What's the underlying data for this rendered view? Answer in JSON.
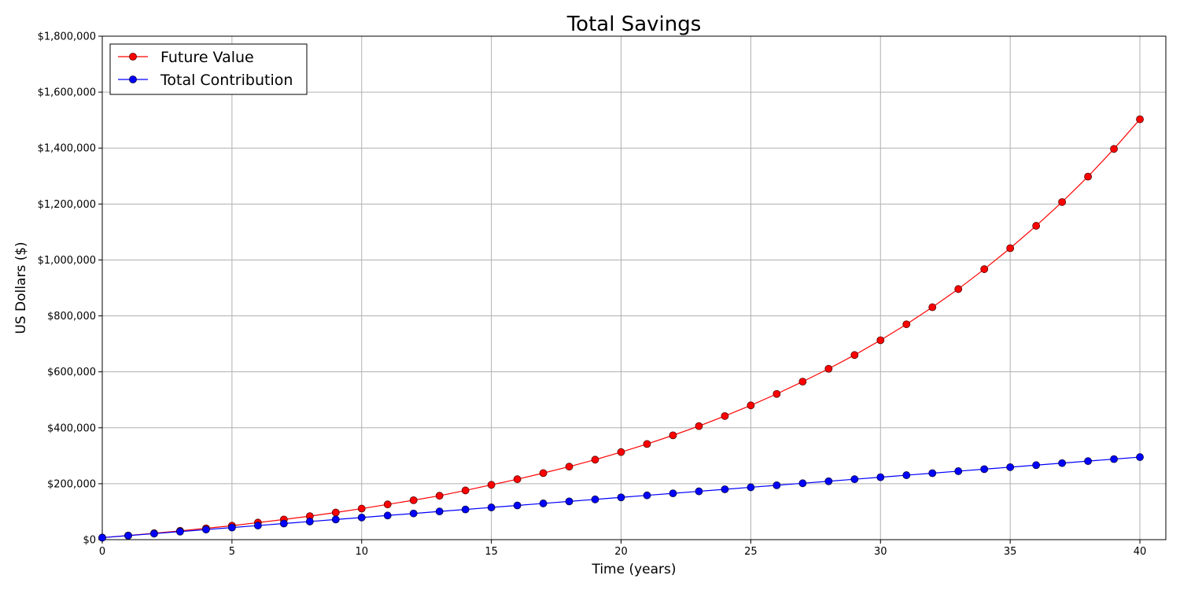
{
  "chart_data": {
    "type": "line",
    "title": "Total Savings",
    "xlabel": "Time (years)",
    "ylabel": "US Dollars ($)",
    "xlim": [
      0,
      41
    ],
    "ylim": [
      0,
      1800000
    ],
    "x_ticks": [
      0,
      5,
      10,
      15,
      20,
      25,
      30,
      35,
      40
    ],
    "y_ticks": [
      0,
      200000,
      400000,
      600000,
      800000,
      1000000,
      1200000,
      1400000,
      1600000,
      1800000
    ],
    "y_tick_labels": [
      "$0",
      "$200,000",
      "$400,000",
      "$600,000",
      "$800,000",
      "$1,000,000",
      "$1,200,000",
      "$1,400,000",
      "$1,600,000",
      "$1,800,000"
    ],
    "grid": true,
    "legend_position": "top-left",
    "x": [
      0,
      1,
      2,
      3,
      4,
      5,
      6,
      7,
      8,
      9,
      10,
      11,
      12,
      13,
      14,
      15,
      16,
      17,
      18,
      19,
      20,
      21,
      22,
      23,
      24,
      25,
      26,
      27,
      28,
      29,
      30,
      31,
      32,
      33,
      34,
      35,
      36,
      37,
      38,
      39,
      40
    ],
    "series": [
      {
        "name": "Future Value",
        "color": "#ff0000",
        "marker": "circle",
        "values": [
          7200,
          14800,
          23000,
          31500,
          40500,
          50000,
          61000,
          72000,
          84000,
          97000,
          111000,
          126000,
          141000,
          157000,
          176000,
          196000,
          216000,
          238000,
          261000,
          286000,
          313000,
          342000,
          373000,
          406000,
          442000,
          480000,
          521000,
          565000,
          611000,
          660000,
          713000,
          770000,
          831000,
          896000,
          967000,
          1042000,
          1122000,
          1207000,
          1298000,
          1397000,
          1503000
        ]
      },
      {
        "name": "Total Contribution",
        "color": "#0000ff",
        "marker": "circle",
        "values": [
          7200,
          14400,
          21600,
          28800,
          36000,
          43200,
          50400,
          57600,
          64800,
          72000,
          79200,
          86400,
          93600,
          100800,
          108000,
          115200,
          122400,
          129600,
          136800,
          144000,
          151200,
          158400,
          165600,
          172800,
          180000,
          187200,
          194400,
          201600,
          208800,
          216000,
          223200,
          230400,
          237600,
          244800,
          252000,
          259200,
          266400,
          273600,
          280800,
          288000,
          295200
        ]
      }
    ]
  }
}
